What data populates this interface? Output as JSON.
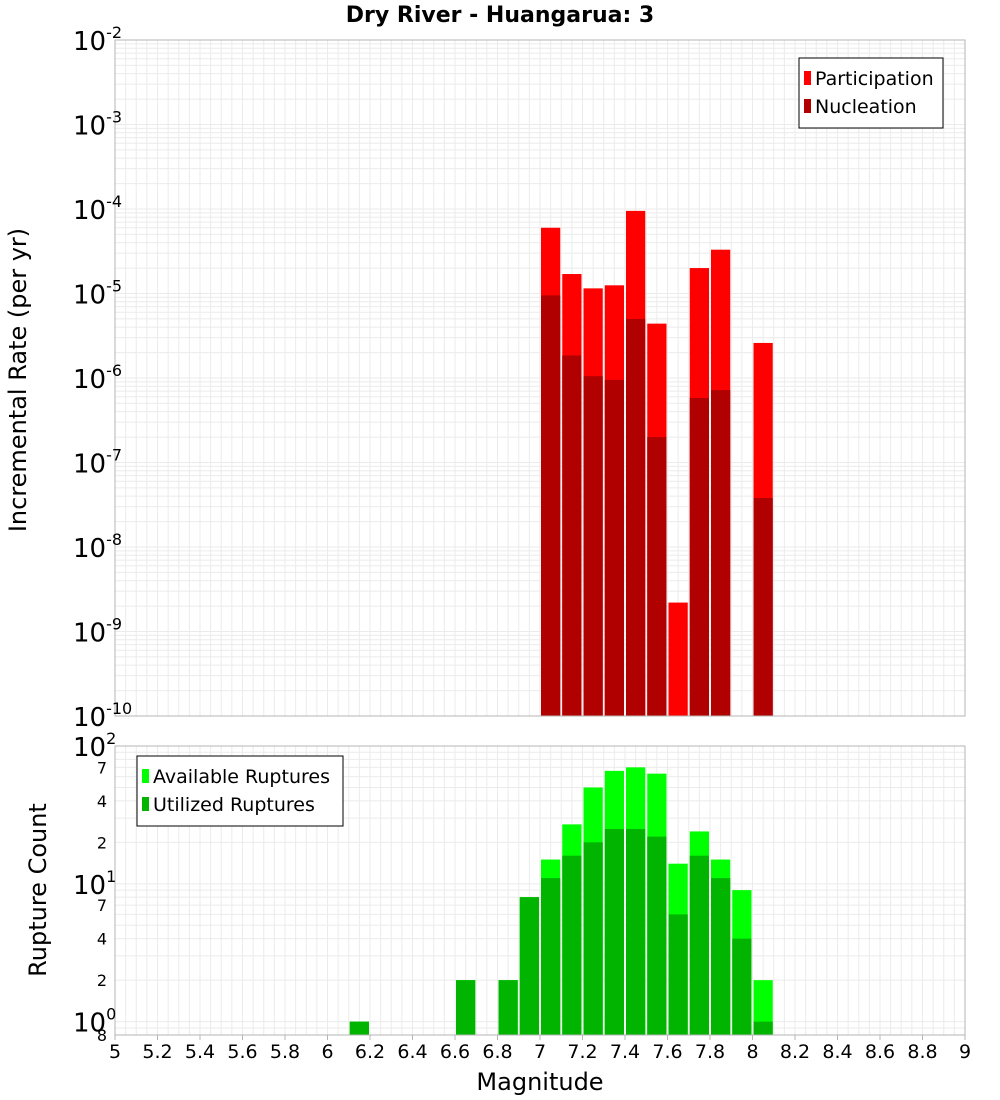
{
  "chart_data": [
    {
      "type": "bar",
      "title": "Dry River - Huangarua: 3",
      "xlabel": "Magnitude",
      "ylabel": "Incremental Rate (per yr)",
      "y_scale": "log",
      "xlim": [
        5,
        9
      ],
      "ylim": [
        1e-10,
        0.01
      ],
      "grid": true,
      "legend_position": "top-right",
      "x_ticks": [
        "5",
        "5.2",
        "5.4",
        "5.6",
        "5.8",
        "6",
        "6.2",
        "6.4",
        "6.6",
        "6.8",
        "7",
        "7.2",
        "7.4",
        "7.6",
        "7.8",
        "8",
        "8.2",
        "8.4",
        "8.6",
        "8.8",
        "9"
      ],
      "y_tick_base": "10",
      "y_tick_exponents": [
        "-10",
        "-9",
        "-8",
        "-7",
        "-6",
        "-5",
        "-4",
        "-3",
        "-2"
      ],
      "series": [
        {
          "name": "Participation",
          "color": "#ff0000",
          "x": [
            7.05,
            7.15,
            7.25,
            7.35,
            7.45,
            7.55,
            7.65,
            7.75,
            7.85,
            8.05
          ],
          "values": [
            6e-05,
            1.7e-05,
            1.15e-05,
            1.25e-05,
            9.5e-05,
            4.4e-06,
            2.2e-09,
            2e-05,
            3.3e-05,
            2.6e-06
          ]
        },
        {
          "name": "Nucleation",
          "color": "#b00000",
          "x": [
            7.05,
            7.15,
            7.25,
            7.35,
            7.45,
            7.55,
            7.75,
            7.85,
            8.05
          ],
          "values": [
            9.5e-06,
            1.85e-06,
            1.05e-06,
            9.5e-07,
            5e-06,
            2e-07,
            5.8e-07,
            7.2e-07,
            3.8e-08
          ]
        }
      ]
    },
    {
      "type": "bar",
      "xlabel": "Magnitude",
      "ylabel": "Rupture Count",
      "y_scale": "log",
      "xlim": [
        5,
        9
      ],
      "ylim": [
        0.8,
        100
      ],
      "grid": true,
      "legend_position": "top-left",
      "x_ticks": [
        "5",
        "5.2",
        "5.4",
        "5.6",
        "5.8",
        "6",
        "6.2",
        "6.4",
        "6.6",
        "6.8",
        "7",
        "7.2",
        "7.4",
        "7.6",
        "7.8",
        "8",
        "8.2",
        "8.4",
        "8.6",
        "8.8",
        "9"
      ],
      "y_major_ticks": [
        {
          "value": 1,
          "base": "10",
          "exp": "0"
        },
        {
          "value": 10,
          "base": "10",
          "exp": "1"
        },
        {
          "value": 100,
          "base": "10",
          "exp": "2"
        }
      ],
      "y_minor_ticks": [
        {
          "value": 0.8,
          "label": "8"
        },
        {
          "value": 2,
          "label": "2"
        },
        {
          "value": 4,
          "label": "4"
        },
        {
          "value": 7,
          "label": "7"
        },
        {
          "value": 20,
          "label": "2"
        },
        {
          "value": 40,
          "label": "4"
        },
        {
          "value": 70,
          "label": "7"
        }
      ],
      "series": [
        {
          "name": "Available Ruptures",
          "color": "#00ff00",
          "x": [
            6.15,
            6.65,
            6.85,
            6.95,
            7.05,
            7.15,
            7.25,
            7.35,
            7.45,
            7.55,
            7.65,
            7.75,
            7.85,
            7.95,
            8.05
          ],
          "values": [
            1,
            2,
            2,
            8,
            15,
            27,
            50,
            66,
            70,
            63,
            14,
            24,
            15,
            9,
            2
          ]
        },
        {
          "name": "Utilized Ruptures",
          "color": "#00b400",
          "x": [
            6.15,
            6.65,
            6.85,
            6.95,
            7.05,
            7.15,
            7.25,
            7.35,
            7.45,
            7.55,
            7.65,
            7.75,
            7.85,
            7.95,
            8.05
          ],
          "values": [
            1,
            2,
            2,
            8,
            11,
            16,
            20,
            25,
            25,
            22,
            6,
            16,
            11,
            4,
            1
          ]
        }
      ]
    }
  ]
}
